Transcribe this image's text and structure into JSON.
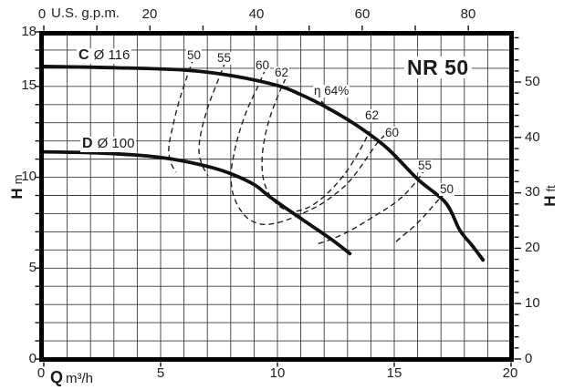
{
  "title": "NR 50",
  "axes": {
    "top": {
      "label": "U.S. g.p.m.",
      "tick_labels": [
        "0",
        "20",
        "40",
        "60",
        "80"
      ]
    },
    "bottom": {
      "label": "Q",
      "unit": "m³/h",
      "tick_labels": [
        "0",
        "5",
        "10",
        "15",
        "20"
      ]
    },
    "left": {
      "label": "H",
      "unit": "m",
      "tick_labels": [
        "18",
        "15",
        "10",
        "5",
        "0"
      ]
    },
    "right": {
      "label": "H",
      "unit": "ft",
      "tick_labels": [
        "50",
        "40",
        "30",
        "20",
        "10",
        "0"
      ]
    }
  },
  "curve_labels": {
    "c_id": "C",
    "c_diameter": "Ø 116",
    "d_id": "D",
    "d_diameter": "Ø 100"
  },
  "efficiency_labels": {
    "left": [
      "50",
      "55",
      "60",
      "62"
    ],
    "right": [
      "62",
      "60",
      "55",
      "50"
    ],
    "bep": "η 64%"
  },
  "chart_data": {
    "type": "line",
    "title": "NR 50",
    "xlabel": "Q m³/h",
    "xlabel_top": "U.S. g.p.m.",
    "ylabel": "H m",
    "ylabel_right": "H ft",
    "xlim": [
      0,
      20
    ],
    "ylim": [
      0,
      18
    ],
    "grid_step": 1,
    "x_major_ticks": [
      0,
      5,
      10,
      15,
      20
    ],
    "y_major_ticks": [
      0,
      5,
      10,
      15,
      18
    ],
    "top_ticks_gpm": {
      "step": 10,
      "max": 80,
      "label_step": 20
    },
    "right_ticks_ft": {
      "step": 2,
      "max": 58,
      "label_step": 10
    },
    "series": [
      {
        "name": "C Ø 116",
        "points": [
          [
            0,
            16.1
          ],
          [
            3,
            16.03
          ],
          [
            6,
            15.9
          ],
          [
            8,
            15.6
          ],
          [
            10,
            15.05
          ],
          [
            11,
            14.55
          ],
          [
            12.1,
            13.85
          ],
          [
            13.4,
            12.85
          ],
          [
            14.7,
            11.6
          ],
          [
            16,
            9.9
          ],
          [
            17.2,
            8.6
          ],
          [
            17.8,
            7.1
          ],
          [
            18.3,
            6.3
          ],
          [
            18.8,
            5.45
          ]
        ]
      },
      {
        "name": "D Ø 100",
        "points": [
          [
            0,
            11.4
          ],
          [
            2,
            11.35
          ],
          [
            4,
            11.22
          ],
          [
            5.5,
            11.0
          ],
          [
            7,
            10.6
          ],
          [
            8,
            10.2
          ],
          [
            9,
            9.6
          ],
          [
            9.7,
            8.9
          ],
          [
            10.7,
            8.0
          ],
          [
            11.5,
            7.3
          ],
          [
            12.4,
            6.5
          ],
          [
            13.1,
            5.8
          ]
        ]
      }
    ],
    "efficiency_contours": [
      {
        "value": 50,
        "branch": "left",
        "points": [
          [
            6.41,
            16.55
          ],
          [
            6.13,
            15.54
          ],
          [
            5.78,
            14.14
          ],
          [
            5.51,
            12.74
          ],
          [
            5.35,
            11.63
          ],
          [
            5.43,
            10.83
          ],
          [
            5.66,
            10.28
          ]
        ]
      },
      {
        "value": 55,
        "branch": "left",
        "points": [
          [
            7.77,
            16.35
          ],
          [
            7.46,
            15.34
          ],
          [
            7.07,
            14.04
          ],
          [
            6.76,
            12.64
          ],
          [
            6.64,
            11.53
          ],
          [
            6.76,
            10.73
          ],
          [
            7.03,
            10.08
          ]
        ]
      },
      {
        "value": 60,
        "branch": "loop",
        "points": [
          [
            9.49,
            15.95
          ],
          [
            9.14,
            14.94
          ],
          [
            8.71,
            13.74
          ],
          [
            8.36,
            12.44
          ],
          [
            8.13,
            11.23
          ],
          [
            8.01,
            10.13
          ],
          [
            8.09,
            9.13
          ],
          [
            8.36,
            8.32
          ],
          [
            8.75,
            7.72
          ],
          [
            9.3,
            7.42
          ],
          [
            9.92,
            7.47
          ],
          [
            10.55,
            7.72
          ],
          [
            11.17,
            8.07
          ],
          [
            11.8,
            8.47
          ],
          [
            12.38,
            8.98
          ],
          [
            12.97,
            9.63
          ],
          [
            13.48,
            10.43
          ],
          [
            13.91,
            11.23
          ],
          [
            14.3,
            11.93
          ],
          [
            14.61,
            12.33
          ]
        ]
      },
      {
        "value": 62,
        "branch": "loop",
        "points": [
          [
            10.35,
            15.44
          ],
          [
            10.04,
            14.54
          ],
          [
            9.69,
            13.34
          ],
          [
            9.45,
            12.13
          ],
          [
            9.34,
            10.93
          ],
          [
            9.41,
            9.83
          ],
          [
            9.69,
            8.98
          ],
          [
            10.12,
            8.37
          ],
          [
            10.66,
            8.12
          ],
          [
            11.29,
            8.32
          ],
          [
            11.84,
            8.78
          ],
          [
            12.34,
            9.38
          ],
          [
            12.85,
            10.13
          ],
          [
            13.32,
            11.03
          ],
          [
            13.67,
            11.83
          ],
          [
            13.95,
            12.54
          ]
        ]
      },
      {
        "value": 55,
        "branch": "right",
        "points": [
          [
            16.33,
            10.48
          ],
          [
            15.98,
            9.83
          ],
          [
            15.43,
            9.03
          ],
          [
            14.84,
            8.42
          ],
          [
            14.22,
            7.92
          ],
          [
            13.59,
            7.42
          ],
          [
            12.97,
            6.97
          ],
          [
            12.27,
            6.57
          ],
          [
            11.68,
            6.32
          ]
        ]
      },
      {
        "value": 50,
        "branch": "right",
        "points": [
          [
            17.19,
            9.13
          ],
          [
            16.8,
            8.63
          ],
          [
            16.25,
            7.82
          ],
          [
            15.78,
            7.22
          ],
          [
            15.31,
            6.72
          ],
          [
            14.96,
            6.32
          ]
        ]
      }
    ],
    "bep_marker": {
      "efficiency": "η 64%",
      "line": [
        [
          11.88,
          14.19
        ],
        [
          12.19,
          13.69
        ]
      ]
    }
  },
  "colors": {
    "ink": "#111111",
    "grid": "#3a3a3a",
    "background": "#ffffff"
  }
}
